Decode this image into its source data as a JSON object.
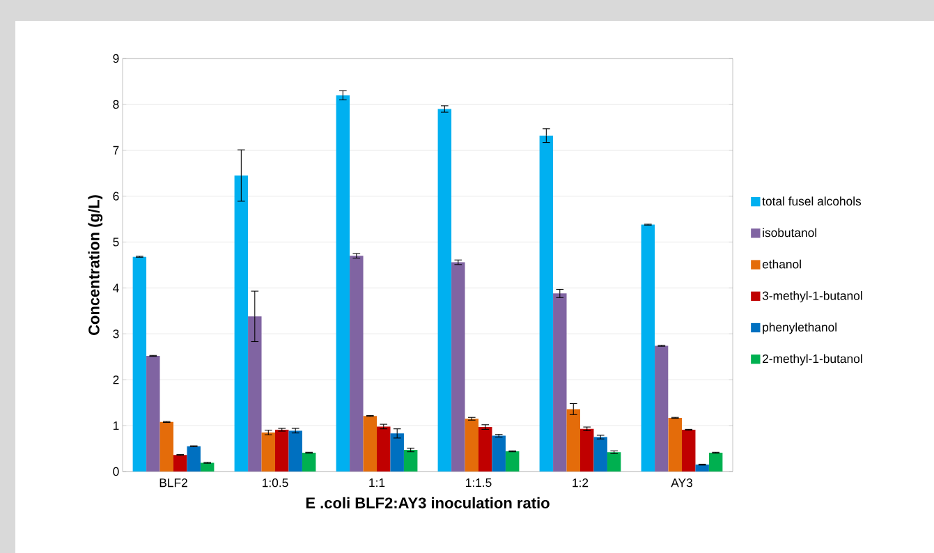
{
  "chart_data": {
    "type": "bar",
    "xlabel": "E .coli BLF2:AY3 inoculation ratio",
    "ylabel": "Concentration (g/L)",
    "categories": [
      "BLF2",
      "1:0.5",
      "1:1",
      "1:1.5",
      "1:2",
      "AY3"
    ],
    "ylim": [
      0,
      9
    ],
    "yticks": [
      0,
      1,
      2,
      3,
      4,
      5,
      6,
      7,
      8,
      9
    ],
    "grid": "y",
    "legend": "right",
    "series": [
      {
        "name": "total fusel alcohols",
        "color": "#00b0f0",
        "values": [
          4.68,
          6.45,
          8.2,
          7.9,
          7.32,
          5.38
        ],
        "errors": [
          0.01,
          0.56,
          0.1,
          0.07,
          0.15,
          0.01
        ]
      },
      {
        "name": "isobutanol",
        "color": "#8064a2",
        "values": [
          2.52,
          3.38,
          4.7,
          4.56,
          3.88,
          2.74
        ],
        "errors": [
          0.01,
          0.55,
          0.05,
          0.05,
          0.09,
          0.01
        ]
      },
      {
        "name": "ethanol",
        "color": "#e46c0a",
        "values": [
          1.08,
          0.85,
          1.21,
          1.15,
          1.36,
          1.17
        ],
        "errors": [
          0.01,
          0.05,
          0.01,
          0.03,
          0.12,
          0.01
        ]
      },
      {
        "name": "3-methyl-1-butanol",
        "color": "#c00000",
        "values": [
          0.36,
          0.91,
          0.98,
          0.97,
          0.93,
          0.91
        ],
        "errors": [
          0.01,
          0.03,
          0.05,
          0.05,
          0.04,
          0.01
        ]
      },
      {
        "name": "phenylethanol",
        "color": "#0070c0",
        "values": [
          0.55,
          0.89,
          0.83,
          0.78,
          0.75,
          0.15
        ],
        "errors": [
          0.01,
          0.05,
          0.1,
          0.03,
          0.04,
          0.01
        ]
      },
      {
        "name": "2-methyl-1-butanol",
        "color": "#00b050",
        "values": [
          0.19,
          0.41,
          0.47,
          0.44,
          0.42,
          0.41
        ],
        "errors": [
          0.01,
          0.01,
          0.04,
          0.01,
          0.03,
          0.01
        ]
      }
    ]
  }
}
